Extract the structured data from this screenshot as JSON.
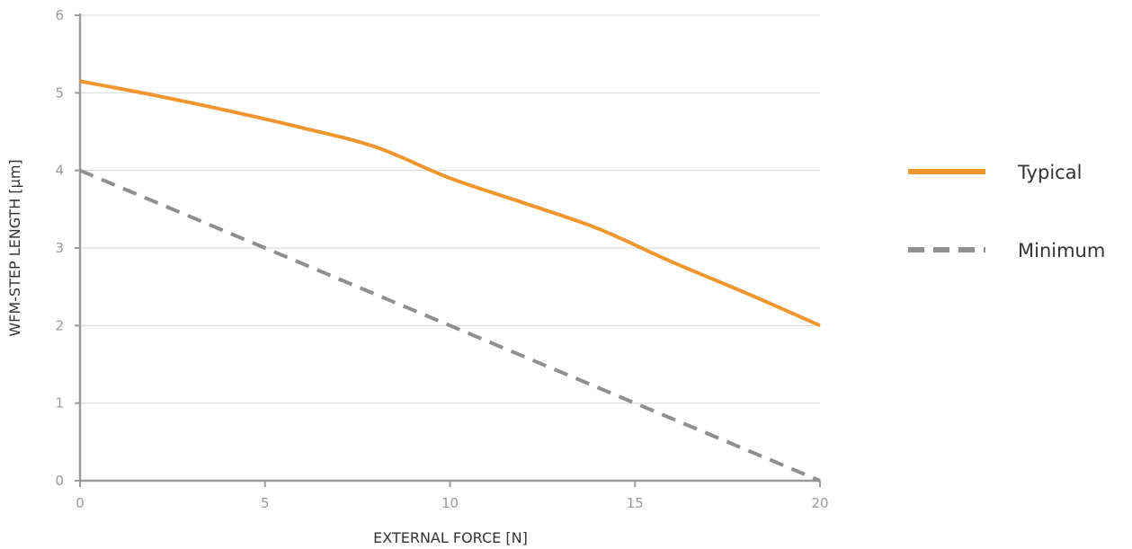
{
  "chart_data": {
    "type": "line",
    "xlabel": "EXTERNAL FORCE [N]",
    "ylabel": "WFM-STEP LENGTH [µm]",
    "xlim": [
      0,
      20
    ],
    "ylim": [
      0,
      6
    ],
    "xticks": [
      "0",
      "5",
      "10",
      "15",
      "20"
    ],
    "yticks": [
      "0",
      "1",
      "2",
      "3",
      "4",
      "5",
      "6"
    ],
    "grid": "horizontal",
    "legend_position": "right",
    "series": [
      {
        "name": "Typical",
        "color": "#f0962e",
        "style": "solid",
        "x": [
          0,
          2,
          4,
          6,
          8,
          10,
          12,
          14,
          16,
          18,
          20
        ],
        "y": [
          5.15,
          4.97,
          4.77,
          4.55,
          4.3,
          3.9,
          3.58,
          3.25,
          2.82,
          2.42,
          2.0
        ]
      },
      {
        "name": "Minimum",
        "color": "#8f8f8f",
        "style": "dashed",
        "x": [
          0,
          5,
          10,
          15,
          20
        ],
        "y": [
          4.0,
          3.0,
          2.0,
          1.0,
          0.0
        ]
      }
    ]
  }
}
